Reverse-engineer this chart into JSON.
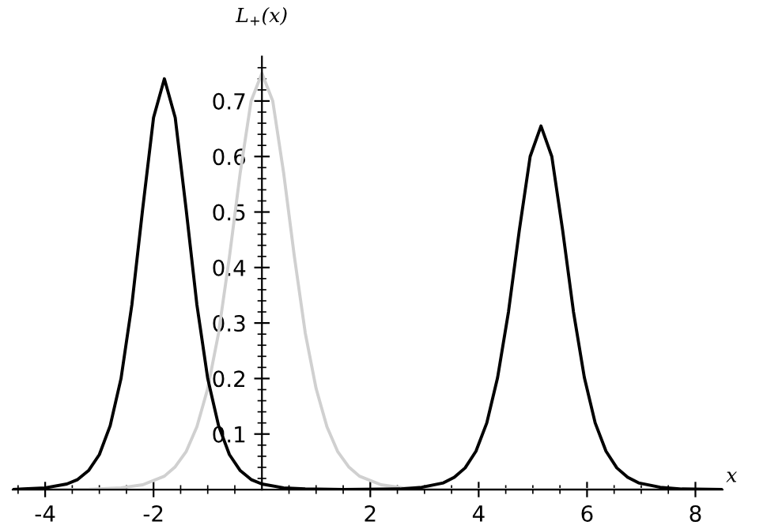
{
  "chart_data": {
    "type": "line",
    "xlabel": "x",
    "ylabel": "L$_{+}$(x)",
    "xlim": [
      -4.6,
      8.5
    ],
    "ylim": [
      0,
      0.78
    ],
    "xticks": [
      -4,
      -2,
      2,
      4,
      6,
      8,
      {
        "value": -4.5,
        "label": null
      },
      {
        "value": -3.5,
        "label": null
      },
      {
        "value": -3,
        "label": null
      },
      {
        "value": -2.5,
        "label": null
      },
      {
        "value": -1.5,
        "label": null
      },
      {
        "value": -1,
        "label": null
      },
      {
        "value": -0.5,
        "label": null
      },
      {
        "value": 0.5,
        "label": null
      },
      {
        "value": 1,
        "label": null
      },
      {
        "value": 1.5,
        "label": null
      },
      {
        "value": 2.5,
        "label": null
      },
      {
        "value": 3,
        "label": null
      },
      {
        "value": 3.5,
        "label": null
      },
      {
        "value": 4.5,
        "label": null
      },
      {
        "value": 5,
        "label": null
      },
      {
        "value": 5.5,
        "label": null
      },
      {
        "value": 6.5,
        "label": null
      },
      {
        "value": 7,
        "label": null
      },
      {
        "value": 7.5,
        "label": null
      }
    ],
    "yticks": [
      0.1,
      0.2,
      0.3,
      0.4,
      0.5,
      0.6,
      0.7,
      {
        "value": 0.02,
        "label": null
      },
      {
        "value": 0.04,
        "label": null
      },
      {
        "value": 0.06,
        "label": null
      },
      {
        "value": 0.08,
        "label": null
      },
      {
        "value": 0.12,
        "label": null
      },
      {
        "value": 0.14,
        "label": null
      },
      {
        "value": 0.16,
        "label": null
      },
      {
        "value": 0.18,
        "label": null
      },
      {
        "value": 0.22,
        "label": null
      },
      {
        "value": 0.24,
        "label": null
      },
      {
        "value": 0.26,
        "label": null
      },
      {
        "value": 0.28,
        "label": null
      },
      {
        "value": 0.32,
        "label": null
      },
      {
        "value": 0.34,
        "label": null
      },
      {
        "value": 0.36,
        "label": null
      },
      {
        "value": 0.38,
        "label": null
      },
      {
        "value": 0.42,
        "label": null
      },
      {
        "value": 0.44,
        "label": null
      },
      {
        "value": 0.46,
        "label": null
      },
      {
        "value": 0.48,
        "label": null
      },
      {
        "value": 0.52,
        "label": null
      },
      {
        "value": 0.54,
        "label": null
      },
      {
        "value": 0.56,
        "label": null
      },
      {
        "value": 0.58,
        "label": null
      },
      {
        "value": 0.62,
        "label": null
      },
      {
        "value": 0.64,
        "label": null
      },
      {
        "value": 0.66,
        "label": null
      },
      {
        "value": 0.68,
        "label": null
      },
      {
        "value": 0.72,
        "label": null
      },
      {
        "value": 0.74,
        "label": null
      },
      {
        "value": 0.76,
        "label": null
      }
    ],
    "grid": false,
    "legend": false,
    "marker": "none",
    "line_style": "solid",
    "series": [
      {
        "color": "#d0d0d0",
        "x": [
          -4.6,
          -3.2,
          -2.6,
          -2.2,
          -1.8,
          -1.6,
          -1.4,
          -1.2,
          -1.0,
          -0.8,
          -0.6,
          -0.4,
          -0.2,
          0,
          0.2,
          0.4,
          0.6,
          0.8,
          1.0,
          1.2,
          1.4,
          1.6,
          1.8,
          2.2,
          2.6,
          3.2,
          8.5
        ],
        "values": [
          0,
          0.0006,
          0.003,
          0.0085,
          0.024,
          0.041,
          0.068,
          0.113,
          0.182,
          0.282,
          0.419,
          0.571,
          0.7,
          0.75,
          0.7,
          0.571,
          0.419,
          0.282,
          0.182,
          0.113,
          0.068,
          0.041,
          0.024,
          0.0085,
          0.003,
          0.0006,
          0
        ]
      },
      {
        "color": "#000000",
        "x": [
          -4.6,
          -4.4,
          -4,
          -3.6,
          -3.4,
          -3.2,
          -3,
          -2.8,
          -2.6,
          -2.4,
          -2.2,
          -2,
          -1.8,
          -1.6,
          -1.4,
          -1.2,
          -1,
          -0.8,
          -0.6,
          -0.4,
          -0.2,
          0,
          0.4,
          0.8,
          1.5,
          2.55,
          2.95,
          3.35,
          3.55,
          3.75,
          3.95,
          4.15,
          4.35,
          4.55,
          4.75,
          4.95,
          5.15,
          5.35,
          5.55,
          5.75,
          5.95,
          6.15,
          6.35,
          6.55,
          6.75,
          6.95,
          7.35,
          7.75,
          8.5
        ],
        "values": [
          0,
          0.001,
          0.003,
          0.01,
          0.018,
          0.034,
          0.063,
          0.115,
          0.2,
          0.333,
          0.506,
          0.67,
          0.74,
          0.67,
          0.506,
          0.333,
          0.2,
          0.115,
          0.063,
          0.034,
          0.018,
          0.01,
          0.003,
          0.001,
          0,
          0.001,
          0.004,
          0.012,
          0.022,
          0.039,
          0.069,
          0.12,
          0.202,
          0.32,
          0.467,
          0.6,
          0.655,
          0.6,
          0.467,
          0.32,
          0.202,
          0.12,
          0.069,
          0.039,
          0.022,
          0.012,
          0.004,
          0.001,
          0
        ]
      }
    ]
  }
}
